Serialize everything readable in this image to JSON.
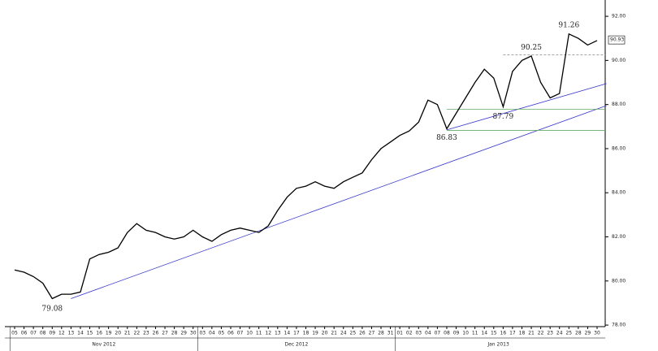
{
  "chart_data": {
    "type": "line",
    "color": "#000000",
    "categories": [
      "05",
      "06",
      "07",
      "08",
      "09",
      "12",
      "13",
      "14",
      "15",
      "16",
      "19",
      "20",
      "21",
      "22",
      "23",
      "26",
      "27",
      "28",
      "29",
      "30",
      "03",
      "04",
      "05",
      "06",
      "07",
      "10",
      "11",
      "12",
      "13",
      "14",
      "17",
      "18",
      "19",
      "20",
      "21",
      "24",
      "25",
      "26",
      "27",
      "28",
      "31",
      "01",
      "02",
      "03",
      "04",
      "07",
      "08",
      "09",
      "10",
      "11",
      "14",
      "15",
      "16",
      "17",
      "18",
      "21",
      "22",
      "23",
      "24",
      "25",
      "28",
      "29",
      "30"
    ],
    "values": [
      80.5,
      80.4,
      80.2,
      79.9,
      79.2,
      79.4,
      79.4,
      79.5,
      81.0,
      81.2,
      81.3,
      81.5,
      82.2,
      82.6,
      82.3,
      82.2,
      82.0,
      81.9,
      82.0,
      82.3,
      82.0,
      81.8,
      82.1,
      82.3,
      82.4,
      82.3,
      82.2,
      82.5,
      83.2,
      83.8,
      84.2,
      84.3,
      84.5,
      84.3,
      84.2,
      84.5,
      84.7,
      84.9,
      85.5,
      86.0,
      86.3,
      86.6,
      86.8,
      87.2,
      88.2,
      88.0,
      86.9,
      87.6,
      88.3,
      89.0,
      89.6,
      89.2,
      87.9,
      89.5,
      90.0,
      90.2,
      89.0,
      88.3,
      88.5,
      91.2,
      91.0,
      90.7,
      90.9
    ],
    "groups": [
      {
        "label": "Nov 2012",
        "start": 0,
        "end": 19
      },
      {
        "label": "Dec 2012",
        "start": 20,
        "end": 40
      },
      {
        "label": "Jan 2013",
        "start": 41,
        "end": 62
      }
    ],
    "ylim": [
      77.93,
      92.74
    ],
    "yticks": [
      {
        "value": 78,
        "label": "78.00"
      },
      {
        "value": 80,
        "label": "80.00"
      },
      {
        "value": 82,
        "label": "82.00"
      },
      {
        "value": 84,
        "label": "84.00"
      },
      {
        "value": 86,
        "label": "86.00"
      },
      {
        "value": 88,
        "label": "88.00"
      },
      {
        "value": 90,
        "label": "90.00"
      },
      {
        "value": 92,
        "label": "92.00"
      }
    ],
    "last_price": {
      "value": 90.93,
      "label": "90.93"
    },
    "annotations": [
      {
        "label": "79.08",
        "value": 79.08,
        "index": 4
      },
      {
        "label": "86.83",
        "value": 86.83,
        "index": 46
      },
      {
        "label": "87.79",
        "value": 87.79,
        "index": 52
      },
      {
        "label": "90.25",
        "value": 90.25,
        "index": 55
      },
      {
        "label": "91.26",
        "value": 91.26,
        "index": 59
      }
    ],
    "levels": [
      {
        "value": 87.79,
        "from": 46,
        "color": "#66aa66",
        "dashed": false
      },
      {
        "value": 86.83,
        "from": 46,
        "color": "#66aa66",
        "dashed": false
      },
      {
        "value": 90.25,
        "from": 52,
        "color": "#888888",
        "dashed": true
      }
    ],
    "trendlines": [
      {
        "color": "#3333cc",
        "points": [
          [
            6,
            79.2
          ],
          [
            63,
            87.95
          ]
        ]
      },
      {
        "color": "#3333cc",
        "points": [
          [
            46,
            86.85
          ],
          [
            63,
            88.95
          ]
        ]
      }
    ]
  }
}
